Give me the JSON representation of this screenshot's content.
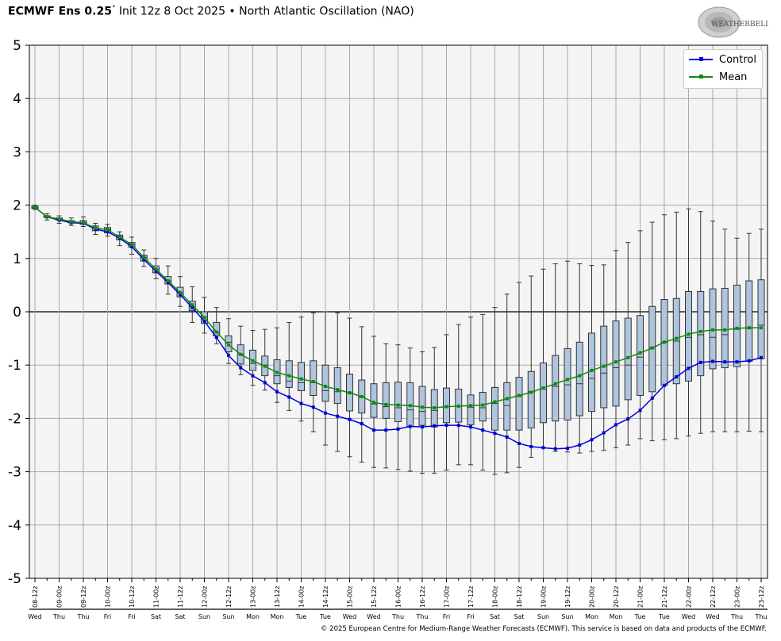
{
  "header": {
    "title_bold": "ECMWF Ens 0.25",
    "title_degree": "°",
    "title_rest": " Init 12z 8 Oct 2025 • North Atlantic Oscillation (NAO)",
    "logo_text": "WeatherBELL"
  },
  "footer": "© 2025 European Centre for Medium-Range Weather Forecasts (ECMWF). This service is based on data and products of the ECMWF.",
  "chart_data": {
    "type": "box-line",
    "title": "ECMWF Ens 0.25° Init 12z 8 Oct 2025 • North Atlantic Oscillation (NAO)",
    "ylim": [
      -5,
      5
    ],
    "yticks": [
      "5",
      "4",
      "3",
      "2",
      "1",
      "0",
      "-1",
      "-2",
      "-3",
      "-4",
      "-5"
    ],
    "grid": true,
    "legend_position": "top-right",
    "colors": {
      "control": "#0000dd",
      "mean": "#108a10",
      "box_fill": "#b0c4de",
      "box_stroke": "#333333",
      "plot_bg": "#f4f4f4",
      "grid": "#aaaaaa"
    },
    "x_tick_labels": [
      "08-12z",
      "09-00z",
      "09-12z",
      "10-00z",
      "10-12z",
      "11-00z",
      "11-12z",
      "12-00z",
      "12-12z",
      "13-00z",
      "13-12z",
      "14-00z",
      "14-12z",
      "15-00z",
      "15-12z",
      "16-00z",
      "16-12z",
      "17-00z",
      "17-12z",
      "18-00z",
      "18-12z",
      "19-00z",
      "19-12z",
      "20-00z",
      "20-12z",
      "21-00z",
      "21-12z",
      "22-00z",
      "22-12z",
      "23-00z",
      "23-12z"
    ],
    "x_day_labels": [
      "Wed",
      "Thu",
      "Thu",
      "Fri",
      "Fri",
      "Sat",
      "Sat",
      "Sun",
      "Sun",
      "Mon",
      "Mon",
      "Tue",
      "Tue",
      "Wed",
      "Wed",
      "Thu",
      "Thu",
      "Fri",
      "Fri",
      "Sat",
      "Sat",
      "Sun",
      "Sun",
      "Mon",
      "Mon",
      "Tue",
      "Tue",
      "Wed",
      "Wed",
      "Thu",
      "Thu"
    ],
    "time_step_hours": 6,
    "series": [
      {
        "name": "Control",
        "values": [
          1.96,
          1.78,
          1.72,
          1.67,
          1.66,
          1.55,
          1.5,
          1.38,
          1.22,
          0.98,
          0.76,
          0.55,
          0.32,
          0.08,
          -0.18,
          -0.48,
          -0.82,
          -1.05,
          -1.2,
          -1.33,
          -1.5,
          -1.6,
          -1.72,
          -1.79,
          -1.9,
          -1.96,
          -2.02,
          -2.1,
          -2.22,
          -2.22,
          -2.2,
          -2.15,
          -2.16,
          -2.14,
          -2.13,
          -2.13,
          -2.16,
          -2.22,
          -2.28,
          -2.35,
          -2.47,
          -2.53,
          -2.55,
          -2.57,
          -2.56,
          -2.5,
          -2.4,
          -2.27,
          -2.12,
          -2.01,
          -1.85,
          -1.62,
          -1.38,
          -1.22,
          -1.06,
          -0.95,
          -0.93,
          -0.94,
          -0.94,
          -0.92,
          -0.86
        ]
      },
      {
        "name": "Mean",
        "values": [
          1.96,
          1.78,
          1.74,
          1.69,
          1.67,
          1.57,
          1.54,
          1.4,
          1.26,
          1.02,
          0.8,
          0.58,
          0.36,
          0.13,
          -0.11,
          -0.38,
          -0.62,
          -0.8,
          -0.92,
          -1.02,
          -1.14,
          -1.2,
          -1.26,
          -1.31,
          -1.4,
          -1.46,
          -1.52,
          -1.59,
          -1.7,
          -1.74,
          -1.75,
          -1.76,
          -1.79,
          -1.8,
          -1.78,
          -1.77,
          -1.76,
          -1.75,
          -1.69,
          -1.63,
          -1.57,
          -1.51,
          -1.43,
          -1.35,
          -1.27,
          -1.2,
          -1.1,
          -1.02,
          -0.94,
          -0.86,
          -0.77,
          -0.68,
          -0.57,
          -0.5,
          -0.42,
          -0.37,
          -0.34,
          -0.34,
          -0.31,
          -0.3,
          -0.3
        ]
      }
    ],
    "boxes": {
      "max": [
        2.0,
        1.84,
        1.8,
        1.76,
        1.78,
        1.66,
        1.64,
        1.5,
        1.4,
        1.16,
        1.0,
        0.86,
        0.66,
        0.47,
        0.27,
        0.08,
        -0.13,
        -0.27,
        -0.35,
        -0.33,
        -0.3,
        -0.2,
        -0.1,
        -0.02,
        0.0,
        -0.02,
        -0.12,
        -0.28,
        -0.46,
        -0.6,
        -0.62,
        -0.68,
        -0.75,
        -0.67,
        -0.43,
        -0.24,
        -0.1,
        -0.05,
        0.08,
        0.33,
        0.55,
        0.67,
        0.8,
        0.9,
        0.95,
        0.9,
        0.87,
        0.88,
        1.15,
        1.3,
        1.52,
        1.68,
        1.82,
        1.87,
        1.93,
        1.88,
        1.7,
        1.55,
        1.38,
        1.47,
        1.55
      ],
      "q3": [
        1.98,
        1.8,
        1.76,
        1.71,
        1.71,
        1.61,
        1.58,
        1.44,
        1.3,
        1.06,
        0.86,
        0.66,
        0.46,
        0.2,
        0.0,
        -0.2,
        -0.45,
        -0.62,
        -0.72,
        -0.83,
        -0.9,
        -0.92,
        -0.95,
        -0.92,
        -1.0,
        -1.05,
        -1.17,
        -1.28,
        -1.35,
        -1.33,
        -1.32,
        -1.33,
        -1.4,
        -1.46,
        -1.43,
        -1.45,
        -1.56,
        -1.51,
        -1.42,
        -1.33,
        -1.23,
        -1.12,
        -0.96,
        -0.82,
        -0.69,
        -0.57,
        -0.4,
        -0.27,
        -0.17,
        -0.12,
        -0.07,
        0.1,
        0.23,
        0.25,
        0.38,
        0.38,
        0.43,
        0.44,
        0.5,
        0.58,
        0.6
      ],
      "median": [
        1.96,
        1.78,
        1.74,
        1.69,
        1.67,
        1.57,
        1.54,
        1.4,
        1.26,
        1.02,
        0.8,
        0.58,
        0.36,
        0.1,
        -0.1,
        -0.38,
        -0.57,
        -0.8,
        -0.97,
        -1.0,
        -1.2,
        -1.3,
        -1.33,
        -1.33,
        -1.48,
        -1.5,
        -1.52,
        -1.6,
        -1.73,
        -1.78,
        -1.8,
        -1.84,
        -1.87,
        -1.85,
        -1.78,
        -1.77,
        -1.79,
        -1.8,
        -1.72,
        -1.76,
        -1.58,
        -1.5,
        -1.45,
        -1.4,
        -1.37,
        -1.35,
        -1.25,
        -1.15,
        -1.05,
        -1.0,
        -0.85,
        -0.67,
        -0.57,
        -0.55,
        -0.48,
        -0.43,
        -0.48,
        -0.43,
        -0.33,
        -0.31,
        -0.25
      ],
      "q1": [
        1.94,
        1.77,
        1.72,
        1.67,
        1.64,
        1.52,
        1.48,
        1.35,
        1.21,
        0.95,
        0.73,
        0.52,
        0.28,
        0.02,
        -0.22,
        -0.45,
        -0.75,
        -0.98,
        -1.1,
        -1.2,
        -1.35,
        -1.42,
        -1.48,
        -1.57,
        -1.68,
        -1.72,
        -1.86,
        -1.9,
        -1.98,
        -2.0,
        -2.06,
        -2.15,
        -2.13,
        -2.16,
        -2.08,
        -2.07,
        -2.12,
        -2.05,
        -2.22,
        -2.22,
        -2.22,
        -2.18,
        -2.08,
        -2.05,
        -2.03,
        -1.95,
        -1.87,
        -1.8,
        -1.77,
        -1.65,
        -1.57,
        -1.5,
        -1.38,
        -1.35,
        -1.3,
        -1.2,
        -1.07,
        -1.05,
        -1.03,
        -0.93,
        -0.88
      ],
      "min": [
        1.92,
        1.72,
        1.66,
        1.62,
        1.6,
        1.45,
        1.42,
        1.24,
        1.08,
        0.85,
        0.62,
        0.33,
        0.1,
        -0.2,
        -0.4,
        -0.6,
        -0.97,
        -1.18,
        -1.38,
        -1.47,
        -1.7,
        -1.85,
        -2.05,
        -2.25,
        -2.5,
        -2.62,
        -2.72,
        -2.82,
        -2.92,
        -2.93,
        -2.96,
        -2.99,
        -3.03,
        -3.03,
        -2.97,
        -2.87,
        -2.87,
        -2.97,
        -3.05,
        -3.02,
        -2.92,
        -2.73,
        -2.55,
        -2.62,
        -2.63,
        -2.65,
        -2.62,
        -2.6,
        -2.55,
        -2.5,
        -2.38,
        -2.42,
        -2.4,
        -2.38,
        -2.33,
        -2.28,
        -2.25,
        -2.25,
        -2.25,
        -2.24,
        -2.25
      ]
    }
  }
}
